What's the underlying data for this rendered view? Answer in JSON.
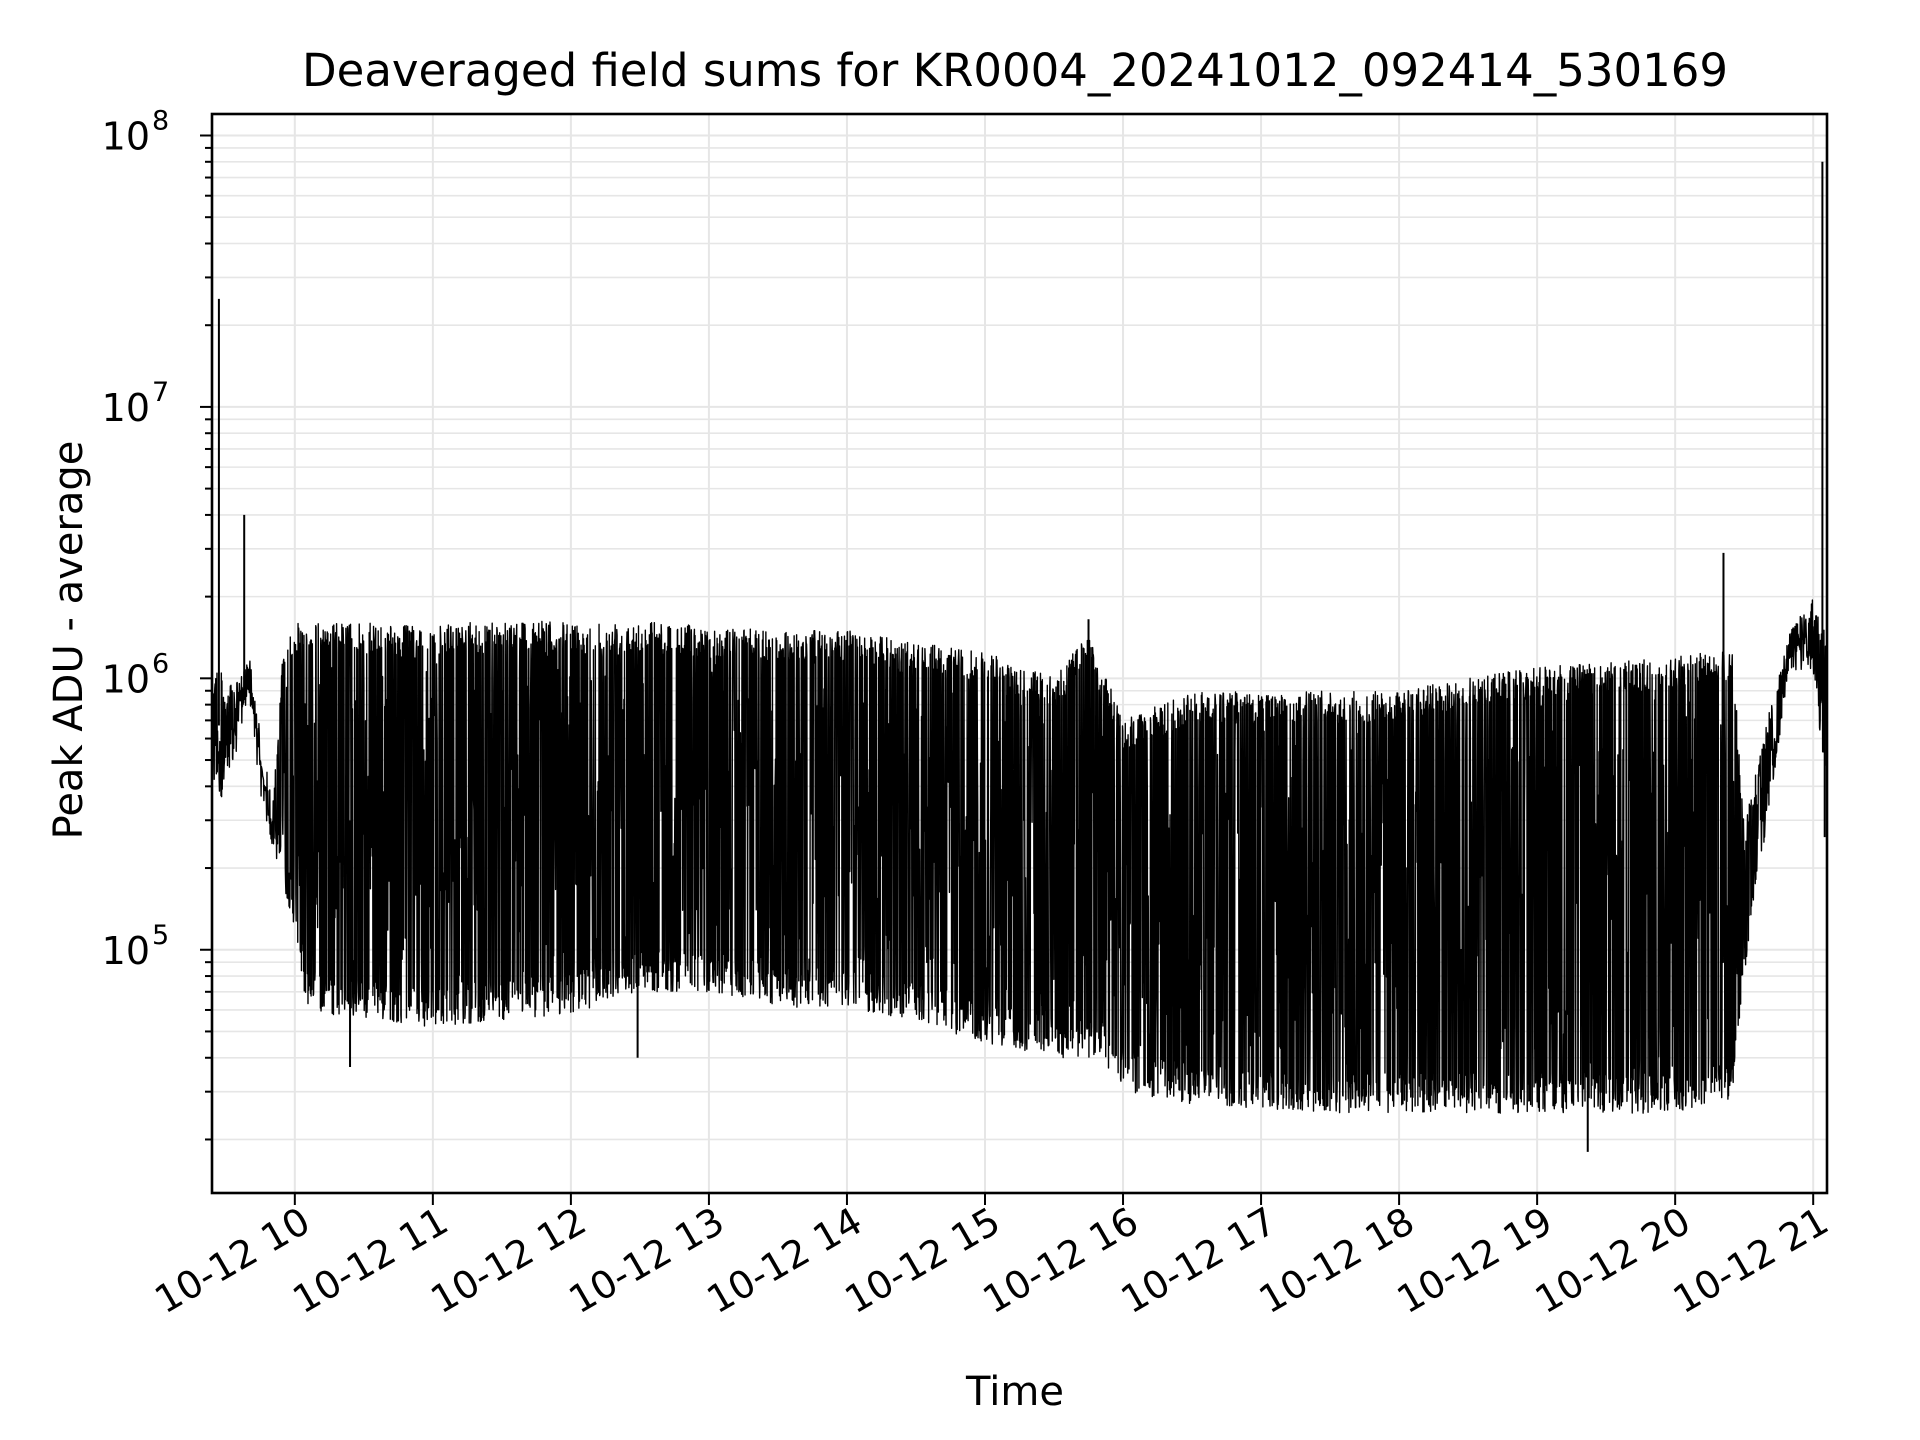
{
  "chart_data": {
    "type": "line",
    "title": "Deaveraged field sums for KR0004_20241012_092414_530169",
    "xlabel": "Time",
    "ylabel": "Peak ADU - average",
    "yscale": "log",
    "ylim": [
      12700,
      120000000
    ],
    "xlim": [
      "10-12 09:24",
      "10-12 21:06"
    ],
    "grid": true,
    "x_tick_labels": [
      "10-12 10",
      "10-12 11",
      "10-12 12",
      "10-12 13",
      "10-12 14",
      "10-12 15",
      "10-12 16",
      "10-12 17",
      "10-12 18",
      "10-12 19",
      "10-12 20",
      "10-12 21"
    ],
    "y_tick_labels": [
      {
        "base": "10",
        "exp": "5"
      },
      {
        "base": "10",
        "exp": "6"
      },
      {
        "base": "10",
        "exp": "7"
      },
      {
        "base": "10",
        "exp": "8"
      }
    ],
    "line_color": "#000000",
    "grid_color": "#e6e6e6",
    "series": [
      {
        "description_note": "",
        "upper_envelope": [
          [
            "10-12 09:24",
            1000000
          ],
          [
            "10-12 09:27",
            1200000
          ],
          [
            "10-12 09:30",
            900000
          ],
          [
            "10-12 09:35",
            1000000
          ],
          [
            "10-12 09:40",
            1150000
          ],
          [
            "10-12 09:45",
            500000
          ],
          [
            "10-12 09:50",
            300000
          ],
          [
            "10-12 09:55",
            1300000
          ],
          [
            "10-12 10:00",
            1600000
          ],
          [
            "10-12 10:30",
            1600000
          ],
          [
            "10-12 11:00",
            1550000
          ],
          [
            "10-12 11:30",
            1650000
          ],
          [
            "10-12 12:00",
            1600000
          ],
          [
            "10-12 12:30",
            1650000
          ],
          [
            "10-12 13:00",
            1550000
          ],
          [
            "10-12 13:30",
            1500000
          ],
          [
            "10-12 14:00",
            1500000
          ],
          [
            "10-12 14:30",
            1350000
          ],
          [
            "10-12 15:00",
            1250000
          ],
          [
            "10-12 15:30",
            1000000
          ],
          [
            "10-12 15:45",
            1500000
          ],
          [
            "10-12 16:00",
            700000
          ],
          [
            "10-12 16:30",
            900000
          ],
          [
            "10-12 17:00",
            900000
          ],
          [
            "10-12 17:30",
            900000
          ],
          [
            "10-12 18:00",
            900000
          ],
          [
            "10-12 18:30",
            1000000
          ],
          [
            "10-12 19:00",
            1100000
          ],
          [
            "10-12 19:30",
            1150000
          ],
          [
            "10-12 20:00",
            1200000
          ],
          [
            "10-12 20:25",
            1300000
          ],
          [
            "10-12 20:30",
            300000
          ],
          [
            "10-12 20:40",
            700000
          ],
          [
            "10-12 20:50",
            1500000
          ],
          [
            "10-12 21:00",
            2000000
          ],
          [
            "10-12 21:06",
            1400000
          ]
        ],
        "lower_envelope": [
          [
            "10-12 09:24",
            400000
          ],
          [
            "10-12 09:30",
            350000
          ],
          [
            "10-12 09:40",
            900000
          ],
          [
            "10-12 09:45",
            500000
          ],
          [
            "10-12 09:50",
            250000
          ],
          [
            "10-12 10:00",
            120000
          ],
          [
            "10-12 10:05",
            60000
          ],
          [
            "10-12 10:30",
            55000
          ],
          [
            "10-12 11:00",
            52000
          ],
          [
            "10-12 11:30",
            55000
          ],
          [
            "10-12 12:00",
            58000
          ],
          [
            "10-12 12:30",
            70000
          ],
          [
            "10-12 13:00",
            70000
          ],
          [
            "10-12 13:30",
            62000
          ],
          [
            "10-12 14:00",
            60000
          ],
          [
            "10-12 14:30",
            55000
          ],
          [
            "10-12 15:00",
            45000
          ],
          [
            "10-12 15:30",
            40000
          ],
          [
            "10-12 15:50",
            40000
          ],
          [
            "10-12 16:00",
            30000
          ],
          [
            "10-12 16:30",
            27000
          ],
          [
            "10-12 17:00",
            26000
          ],
          [
            "10-12 17:30",
            25000
          ],
          [
            "10-12 18:00",
            25000
          ],
          [
            "10-12 18:30",
            25000
          ],
          [
            "10-12 19:00",
            25000
          ],
          [
            "10-12 19:30",
            25000
          ],
          [
            "10-12 20:00",
            25000
          ],
          [
            "10-12 20:25",
            28000
          ],
          [
            "10-12 20:30",
            80000
          ],
          [
            "10-12 20:40",
            300000
          ],
          [
            "10-12 20:50",
            1100000
          ],
          [
            "10-12 21:00",
            1000000
          ],
          [
            "10-12 21:06",
            400000
          ]
        ],
        "spikes": [
          [
            "10-12 09:27",
            25000000
          ],
          [
            "10-12 09:38",
            4000000
          ],
          [
            "10-12 10:24",
            37000
          ],
          [
            "10-12 12:29",
            40000
          ],
          [
            "10-12 15:45",
            1650000
          ],
          [
            "10-12 19:22",
            18000
          ],
          [
            "10-12 20:21",
            2900000
          ],
          [
            "10-12 21:04",
            80000000
          ],
          [
            "10-12 21:05",
            260000
          ]
        ]
      }
    ]
  }
}
